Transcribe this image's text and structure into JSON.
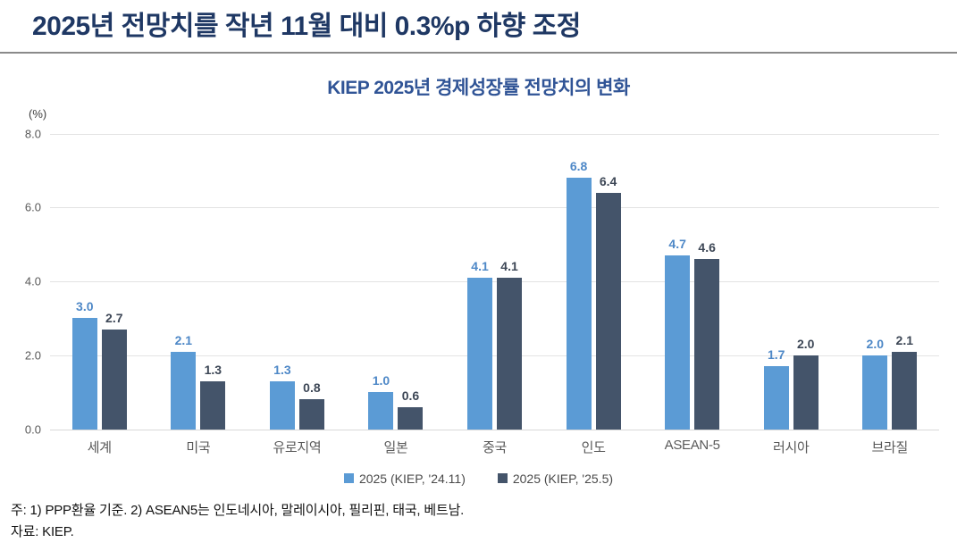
{
  "header": {
    "title": "2025년 전망치를 작년 11월 대비 0.3%p 하향 조정"
  },
  "chart_data": {
    "type": "bar",
    "title": "KIEP 2025년 경제성장률 전망치의 변화",
    "unit_label": "(%)",
    "categories": [
      "세계",
      "미국",
      "유로지역",
      "일본",
      "중국",
      "인도",
      "ASEAN-5",
      "러시아",
      "브라질"
    ],
    "series": [
      {
        "name": "2025 (KIEP, '24.11)",
        "color": "#5B9BD5",
        "label_color": "#4E88C7",
        "values": [
          3.0,
          2.1,
          1.3,
          1.0,
          4.1,
          6.8,
          4.7,
          1.7,
          2.0
        ]
      },
      {
        "name": "2025 (KIEP, '25.5)",
        "color": "#44546A",
        "label_color": "#3D4756",
        "values": [
          2.7,
          1.3,
          0.8,
          0.6,
          4.1,
          6.4,
          4.6,
          2.0,
          2.1
        ]
      }
    ],
    "ylim": [
      0,
      8
    ],
    "yticks": [
      "8.0",
      "6.0",
      "4.0",
      "2.0",
      "0.0"
    ],
    "grid": true,
    "legend_position": "bottom"
  },
  "footnotes": {
    "note": "주: 1) PPP환율 기준. 2) ASEAN5는 인도네시아, 말레이시아, 필리핀, 태국, 베트남.",
    "source": "자료: KIEP."
  }
}
